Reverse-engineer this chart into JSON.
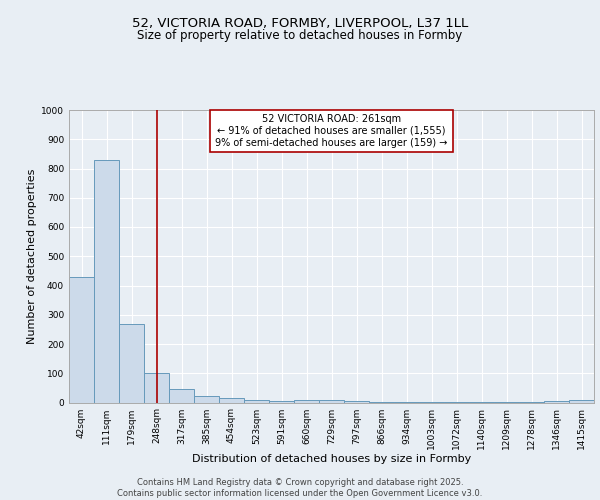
{
  "title_line1": "52, VICTORIA ROAD, FORMBY, LIVERPOOL, L37 1LL",
  "title_line2": "Size of property relative to detached houses in Formby",
  "xlabel": "Distribution of detached houses by size in Formby",
  "ylabel": "Number of detached properties",
  "categories": [
    "42sqm",
    "111sqm",
    "179sqm",
    "248sqm",
    "317sqm",
    "385sqm",
    "454sqm",
    "523sqm",
    "591sqm",
    "660sqm",
    "729sqm",
    "797sqm",
    "866sqm",
    "934sqm",
    "1003sqm",
    "1072sqm",
    "1140sqm",
    "1209sqm",
    "1278sqm",
    "1346sqm",
    "1415sqm"
  ],
  "values": [
    430,
    830,
    270,
    100,
    45,
    22,
    15,
    10,
    5,
    10,
    8,
    5,
    3,
    2,
    1,
    1,
    1,
    1,
    1,
    5,
    7
  ],
  "bar_color": "#ccdaea",
  "bar_edge_color": "#6699bb",
  "vline_x_index": 3,
  "vline_color": "#aa0000",
  "annotation_box_text": "52 VICTORIA ROAD: 261sqm\n← 91% of detached houses are smaller (1,555)\n9% of semi-detached houses are larger (159) →",
  "annotation_box_color": "#aa0000",
  "annotation_box_facecolor": "#ffffff",
  "ylim": [
    0,
    1000
  ],
  "yticks": [
    0,
    100,
    200,
    300,
    400,
    500,
    600,
    700,
    800,
    900,
    1000
  ],
  "footer_text": "Contains HM Land Registry data © Crown copyright and database right 2025.\nContains public sector information licensed under the Open Government Licence v3.0.",
  "background_color": "#e8eef4",
  "grid_color": "#ffffff",
  "title_fontsize": 9.5,
  "subtitle_fontsize": 8.5,
  "axis_label_fontsize": 8,
  "tick_fontsize": 6.5,
  "annotation_fontsize": 7,
  "footer_fontsize": 6
}
